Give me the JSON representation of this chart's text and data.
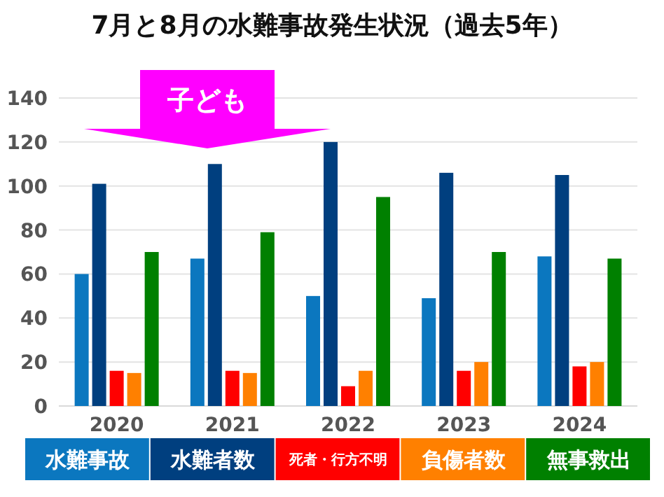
{
  "chart_data": {
    "type": "bar",
    "title": "7月と8月の水難事故発生状況（過去5年）",
    "categories": [
      "2020",
      "2021",
      "2022",
      "2023",
      "2024"
    ],
    "series": [
      {
        "name": "水難事故",
        "color": "#0b77bf",
        "values": [
          60,
          67,
          50,
          49,
          68
        ]
      },
      {
        "name": "水難者数",
        "color": "#003f7f",
        "values": [
          101,
          110,
          120,
          106,
          105
        ]
      },
      {
        "name": "死者・行方不明",
        "color": "#ff0000",
        "values": [
          16,
          16,
          9,
          16,
          18
        ]
      },
      {
        "name": "負傷者数",
        "color": "#ff8000",
        "values": [
          15,
          15,
          16,
          20,
          20
        ]
      },
      {
        "name": "無事救出",
        "color": "#008000",
        "values": [
          70,
          79,
          95,
          70,
          67
        ]
      }
    ],
    "ylim": [
      0,
      140
    ],
    "yticks": [
      0,
      20,
      40,
      60,
      80,
      100,
      120,
      140
    ],
    "grid": "y",
    "legend": "bottom",
    "annotations": [
      "子ども"
    ]
  }
}
